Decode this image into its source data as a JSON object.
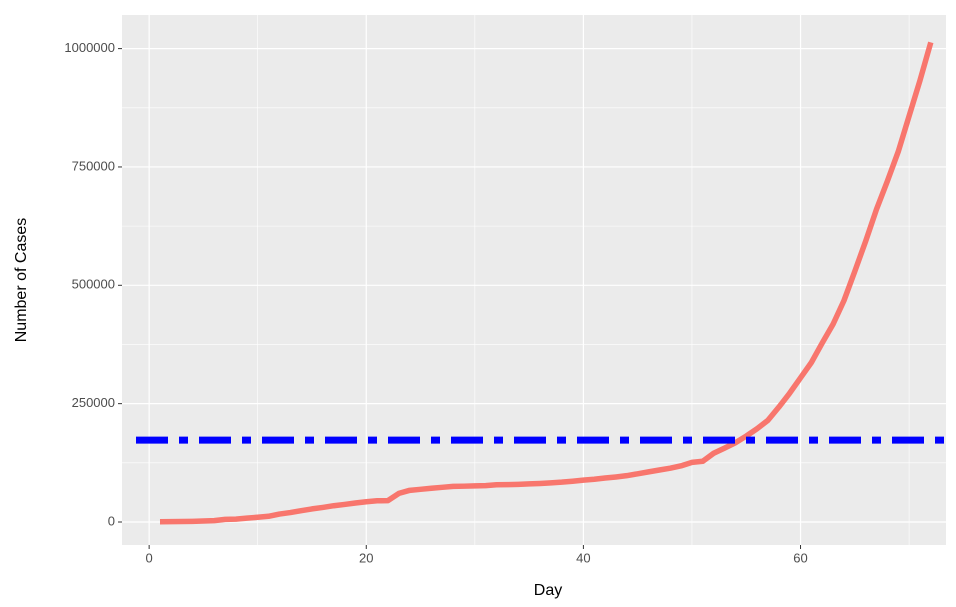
{
  "chart_data": {
    "type": "line",
    "x_label": "Day",
    "y_label": "Number of Cases",
    "x": [
      1,
      2,
      3,
      4,
      5,
      6,
      7,
      8,
      9,
      10,
      11,
      12,
      13,
      14,
      15,
      16,
      17,
      18,
      19,
      20,
      21,
      22,
      23,
      24,
      25,
      26,
      27,
      28,
      29,
      30,
      31,
      32,
      33,
      34,
      35,
      36,
      37,
      38,
      39,
      40,
      41,
      42,
      43,
      44,
      45,
      46,
      47,
      48,
      49,
      50,
      51,
      52,
      53,
      54,
      55,
      56,
      57,
      58,
      59,
      60,
      61,
      62,
      63,
      64,
      65,
      66,
      67,
      68,
      69,
      70,
      71,
      72
    ],
    "series": [
      {
        "color": "#f8766d",
        "values": [
          555,
          654,
          941,
          1434,
          2118,
          2927,
          5578,
          6166,
          8234,
          9927,
          12038,
          16787,
          19881,
          23892,
          27635,
          30794,
          34391,
          37120,
          40150,
          42762,
          44802,
          45221,
          60368,
          66885,
          69030,
          71224,
          73258,
          75136,
          75639,
          76197,
          76819,
          78572,
          78958,
          79561,
          80406,
          81388,
          82746,
          84112,
          86011,
          88369,
          90306,
          92840,
          95120,
          97886,
          101801,
          105847,
          109821,
          113590,
          118620,
          125875,
          128352,
          145205,
          156101,
          167454,
          181574,
          197102,
          214821,
          242570,
          272208,
          304507,
          336953,
          378235,
          418045,
          467653,
          529591,
          593291,
          660706,
          720117,
          782365,
          857487,
          932605,
          1013157
        ]
      }
    ],
    "hline": {
      "value": 173000,
      "color": "#0000ff"
    },
    "xlim": [
      -2.5,
      73.4
    ],
    "xticks": [
      0,
      20,
      40,
      60
    ],
    "ylim": [
      -48600,
      1071000
    ],
    "yticks": [
      0,
      250000,
      500000,
      750000,
      1000000
    ],
    "grid": true
  }
}
